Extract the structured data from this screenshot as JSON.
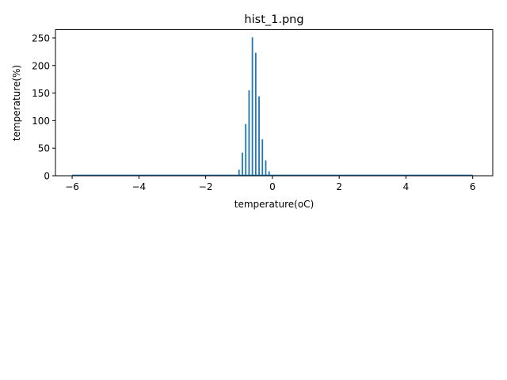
{
  "chart_data": {
    "type": "bar",
    "title": "hist_1.png",
    "xlabel": "temperature(oC)",
    "ylabel": "temperature(%)",
    "xlim": [
      -6.5,
      6.6
    ],
    "ylim": [
      0,
      265
    ],
    "x_ticks": [
      -6,
      -4,
      -2,
      0,
      2,
      4,
      6
    ],
    "x_tick_labels": [
      "−6",
      "−4",
      "−2",
      "0",
      "2",
      "4",
      "6"
    ],
    "y_ticks": [
      0,
      50,
      100,
      150,
      200,
      250
    ],
    "y_tick_labels": [
      "0",
      "50",
      "100",
      "150",
      "200",
      "250"
    ],
    "bar_color": "#1f77b4",
    "bins": [
      {
        "x": -1.1,
        "value": 1
      },
      {
        "x": -1.0,
        "value": 11
      },
      {
        "x": -0.9,
        "value": 42
      },
      {
        "x": -0.8,
        "value": 94
      },
      {
        "x": -0.7,
        "value": 155
      },
      {
        "x": -0.6,
        "value": 251
      },
      {
        "x": -0.5,
        "value": 223
      },
      {
        "x": -0.4,
        "value": 144
      },
      {
        "x": -0.3,
        "value": 66
      },
      {
        "x": -0.2,
        "value": 28
      },
      {
        "x": -0.1,
        "value": 8
      },
      {
        "x": 0.0,
        "value": 1
      }
    ]
  }
}
